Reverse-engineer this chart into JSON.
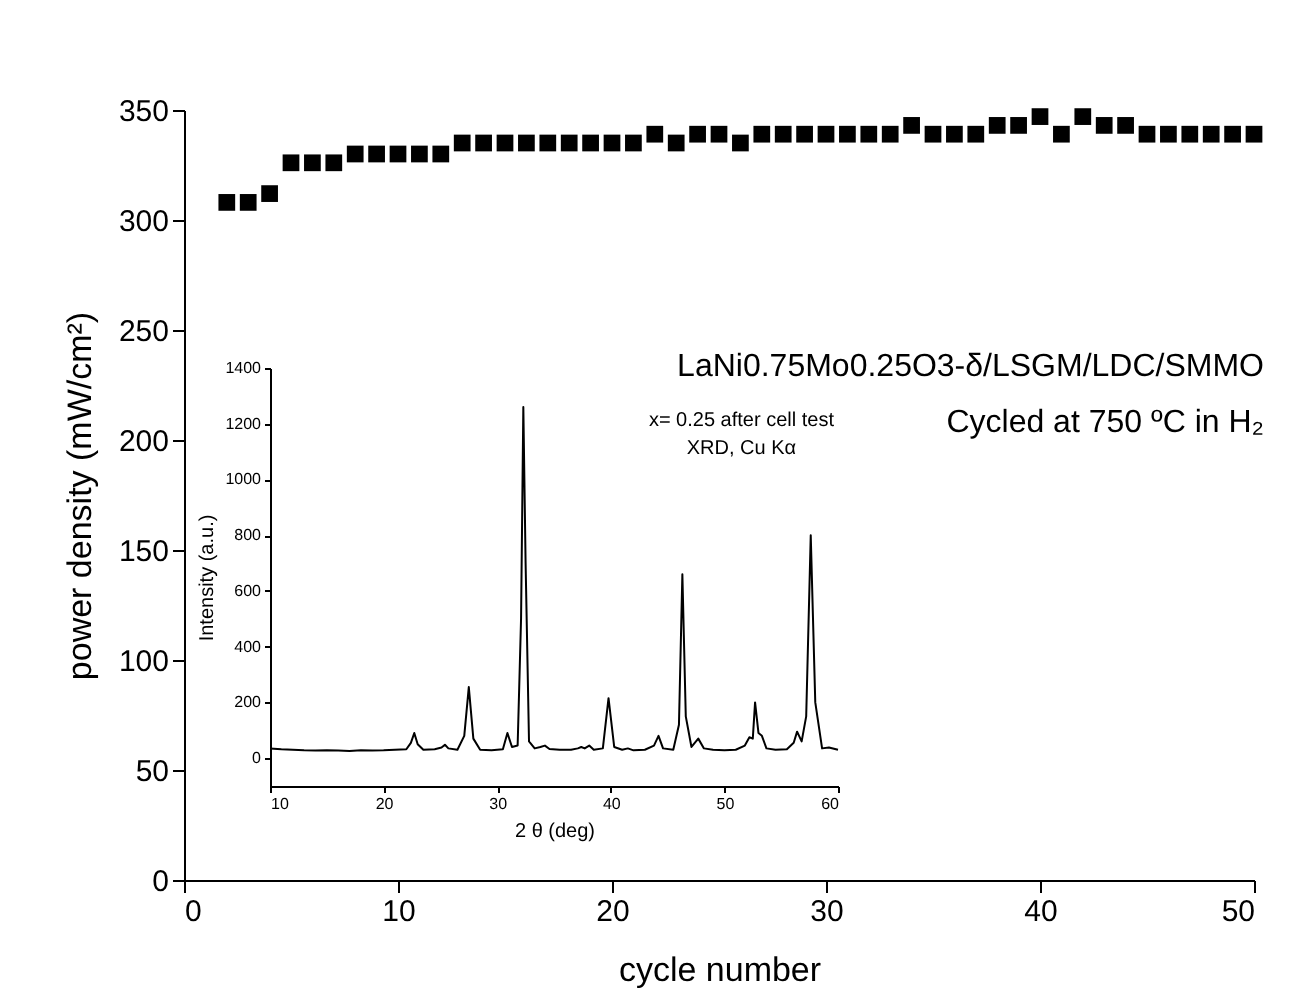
{
  "chart_data": [
    {
      "type": "scatter",
      "xlabel": "cycle number",
      "ylabel": "power density (mW/cm²)",
      "marker": "square",
      "color": "#000000",
      "grid": false,
      "annotations": [
        "LaNi0.75Mo0.25O3-δ/LSGM/LDC/SMMO",
        "Cycled at 750 ºC in H₂"
      ],
      "x": [
        2,
        3,
        4,
        5,
        6,
        7,
        8,
        9,
        10,
        11,
        12,
        13,
        14,
        15,
        16,
        17,
        18,
        19,
        20,
        21,
        22,
        23,
        24,
        25,
        26,
        27,
        28,
        29,
        30,
        31,
        32,
        33,
        34,
        35,
        36,
        37,
        38,
        39,
        40,
        41,
        42,
        43,
        44,
        45,
        46,
        47,
        48,
        49,
        50
      ],
      "values": [
        308,
        308,
        312,
        326,
        326,
        326,
        330,
        330,
        330,
        330,
        330,
        335,
        335,
        335,
        335,
        335,
        335,
        335,
        335,
        335,
        339,
        335,
        339,
        339,
        335,
        339,
        339,
        339,
        339,
        339,
        339,
        339,
        343,
        339,
        339,
        339,
        343,
        343,
        347,
        339,
        347,
        343,
        343,
        339,
        339,
        339,
        339,
        339,
        339
      ],
      "xlim": [
        0,
        50
      ],
      "xticks": [
        0,
        10,
        20,
        30,
        40,
        50
      ],
      "ylim": [
        0,
        350
      ],
      "yticks": [
        0,
        50,
        100,
        150,
        200,
        250,
        300,
        350
      ]
    },
    {
      "type": "line",
      "xlabel": "2 θ (deg)",
      "ylabel": "Intensity (a.u.)",
      "color": "#000000",
      "grid": false,
      "annotations": [
        "x= 0.25 after cell test",
        "XRD, Cu Kα"
      ],
      "x": [
        10,
        11,
        12,
        13,
        14,
        15,
        16,
        17,
        18,
        19,
        20,
        21,
        22,
        22.4,
        22.7,
        23.0,
        23.5,
        24.5,
        25.1,
        25.4,
        25.7,
        26.5,
        27.1,
        27.5,
        27.9,
        28.5,
        29.5,
        30.5,
        30.9,
        31.3,
        31.8,
        32.1,
        32.3,
        32.5,
        32.8,
        33.3,
        33.8,
        34.2,
        34.6,
        35.5,
        36.5,
        37.1,
        37.4,
        37.7,
        38.1,
        38.5,
        39.3,
        39.8,
        40.3,
        41,
        41.5,
        42,
        43,
        43.8,
        44.2,
        44.6,
        45.5,
        46.0,
        46.3,
        46.6,
        47.1,
        47.7,
        48.2,
        49,
        50,
        51,
        51.8,
        52.2,
        52.5,
        52.7,
        53.0,
        53.3,
        53.7,
        54.5,
        55.5,
        56.1,
        56.4,
        56.8,
        57.2,
        57.6,
        58.0,
        58.6,
        59.2,
        60
      ],
      "values": [
        35,
        32,
        30,
        28,
        27,
        28,
        27,
        26,
        28,
        27,
        28,
        30,
        32,
        55,
        90,
        50,
        30,
        32,
        38,
        48,
        35,
        30,
        80,
        255,
        70,
        30,
        28,
        32,
        90,
        40,
        45,
        500,
        1260,
        700,
        60,
        35,
        40,
        45,
        33,
        30,
        30,
        35,
        40,
        35,
        45,
        30,
        35,
        215,
        40,
        30,
        35,
        28,
        30,
        45,
        80,
        35,
        30,
        120,
        660,
        150,
        40,
        70,
        35,
        30,
        28,
        30,
        45,
        75,
        70,
        200,
        90,
        80,
        35,
        30,
        32,
        55,
        95,
        60,
        150,
        800,
        200,
        35,
        38,
        30
      ],
      "xlim": [
        10,
        60
      ],
      "xticks": [
        10,
        20,
        30,
        40,
        50,
        60
      ],
      "ylim": [
        -100,
        1400
      ],
      "yticks": [
        0,
        200,
        400,
        600,
        800,
        1000,
        1200,
        1400
      ]
    }
  ]
}
